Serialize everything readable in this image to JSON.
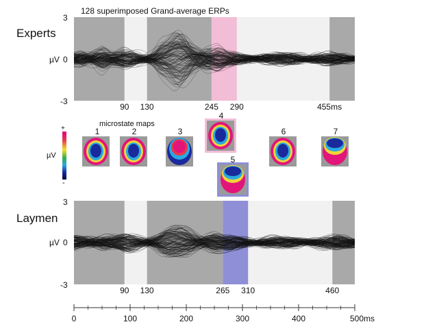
{
  "chart_data": [
    {
      "type": "line",
      "title": "128 superimposed Grand-average ERPs",
      "group_label": "Experts",
      "ylabel_unit": "µV",
      "ylim": [
        -3,
        3
      ],
      "ytick_labels": [
        "3",
        "0",
        "-3"
      ],
      "xlim_ms": [
        0,
        500
      ],
      "n_traces": 128,
      "segment_boundaries_ms": [
        90,
        130,
        245,
        290,
        455
      ],
      "boundary_labels": [
        "90",
        "130",
        "245",
        "290",
        "455ms"
      ],
      "highlight_ms": [
        245,
        290
      ],
      "highlight_color": "#f2bdd6",
      "gray_intervals_ms": [
        [
          0,
          90
        ],
        [
          130,
          245
        ],
        [
          455,
          500
        ]
      ],
      "light_intervals_ms": [
        [
          90,
          130
        ],
        [
          290,
          455
        ]
      ],
      "envelope_points": [
        {
          "t": 0,
          "amp": 0.5
        },
        {
          "t": 20,
          "amp": 0.9
        },
        {
          "t": 45,
          "amp": 1.3
        },
        {
          "t": 70,
          "amp": 0.5
        },
        {
          "t": 100,
          "amp": 0.8
        },
        {
          "t": 130,
          "amp": 0.7
        },
        {
          "t": 160,
          "amp": 1.5
        },
        {
          "t": 190,
          "amp": 2.3
        },
        {
          "t": 220,
          "amp": 1.7
        },
        {
          "t": 250,
          "amp": 1.0
        },
        {
          "t": 280,
          "amp": 0.5
        },
        {
          "t": 320,
          "amp": 0.4
        },
        {
          "t": 360,
          "amp": 0.4
        },
        {
          "t": 400,
          "amp": 0.5
        },
        {
          "t": 450,
          "amp": 0.45
        },
        {
          "t": 500,
          "amp": 0.3
        }
      ]
    },
    {
      "type": "line",
      "group_label": "Laymen",
      "ylabel_unit": "µV",
      "ylim": [
        -3,
        3
      ],
      "ytick_labels": [
        "3",
        "0",
        "-3"
      ],
      "xlim_ms": [
        0,
        500
      ],
      "n_traces": 128,
      "segment_boundaries_ms": [
        90,
        130,
        265,
        310,
        460
      ],
      "boundary_labels": [
        "90",
        "130",
        "265",
        "310",
        "460"
      ],
      "highlight_ms": [
        265,
        310
      ],
      "highlight_color": "#8e8fd6",
      "gray_intervals_ms": [
        [
          0,
          90
        ],
        [
          130,
          265
        ],
        [
          460,
          500
        ]
      ],
      "light_intervals_ms": [
        [
          90,
          130
        ],
        [
          310,
          460
        ]
      ],
      "envelope_points": [
        {
          "t": 0,
          "amp": 0.6
        },
        {
          "t": 20,
          "amp": 0.6
        },
        {
          "t": 45,
          "amp": 0.7
        },
        {
          "t": 70,
          "amp": 0.5
        },
        {
          "t": 100,
          "amp": 0.8
        },
        {
          "t": 130,
          "amp": 0.6
        },
        {
          "t": 170,
          "amp": 1.2
        },
        {
          "t": 200,
          "amp": 1.3
        },
        {
          "t": 240,
          "amp": 1.0
        },
        {
          "t": 270,
          "amp": 0.6
        },
        {
          "t": 320,
          "amp": 0.45
        },
        {
          "t": 380,
          "amp": 0.4
        },
        {
          "t": 430,
          "amp": 0.45
        },
        {
          "t": 470,
          "amp": 0.5
        },
        {
          "t": 500,
          "amp": 0.5
        }
      ]
    }
  ],
  "microstates": {
    "title": "microstate maps",
    "colorbar": {
      "unit": "µV",
      "plus": "+",
      "minus": "-"
    },
    "maps": [
      {
        "label": "1",
        "row": "top",
        "pattern": "center-negative"
      },
      {
        "label": "2",
        "row": "top",
        "pattern": "center-negative"
      },
      {
        "label": "3",
        "row": "top",
        "pattern": "frontal-positive"
      },
      {
        "label": "4",
        "row": "top",
        "pattern": "center-negative",
        "highlight": "#f2bdd6"
      },
      {
        "label": "5",
        "row": "bottom",
        "pattern": "frontal-negative",
        "highlight": "#8e8fd6"
      },
      {
        "label": "6",
        "row": "top",
        "pattern": "center-negative"
      },
      {
        "label": "7",
        "row": "top",
        "pattern": "frontal-negative"
      }
    ]
  },
  "time_axis": {
    "ticks_ms": [
      0,
      100,
      200,
      300,
      400,
      500
    ],
    "tick_labels": [
      "0",
      "100",
      "200",
      "300",
      "400",
      "500ms"
    ]
  }
}
